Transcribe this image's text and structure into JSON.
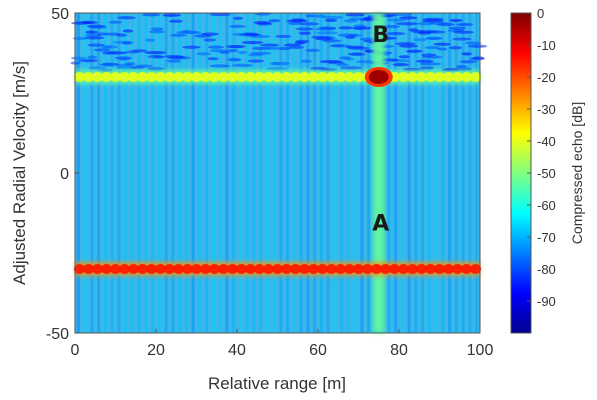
{
  "chart_data": {
    "type": "heatmap",
    "xlabel": "Relative range [m]",
    "ylabel": "Adjusted Radial Velocity [m/s]",
    "xlim": [
      0,
      100
    ],
    "ylim": [
      -50,
      50
    ],
    "x_ticks": [
      0,
      20,
      40,
      60,
      80,
      100
    ],
    "y_ticks": [
      -50,
      0,
      50
    ],
    "colorbar": {
      "label": "Compressed echo [dB]",
      "range": [
        -100,
        0
      ],
      "ticks": [
        0,
        -10,
        -20,
        -30,
        -40,
        -50,
        -60,
        -70,
        -80,
        -90
      ],
      "colormap": "jet"
    },
    "background_level_db": -70,
    "features": [
      {
        "kind": "horizontal-band",
        "velocity": -30,
        "level_db": -15
      },
      {
        "kind": "horizontal-band",
        "velocity": 30,
        "level_db": -40
      },
      {
        "kind": "vertical-band",
        "range": 75,
        "level_db": -52
      },
      {
        "kind": "point-target",
        "range": 75,
        "velocity": 30,
        "level_db": -3
      }
    ],
    "annotations": [
      {
        "text": "A",
        "range": 75,
        "velocity": -18
      },
      {
        "text": "B",
        "range": 75,
        "velocity": 41
      }
    ]
  }
}
